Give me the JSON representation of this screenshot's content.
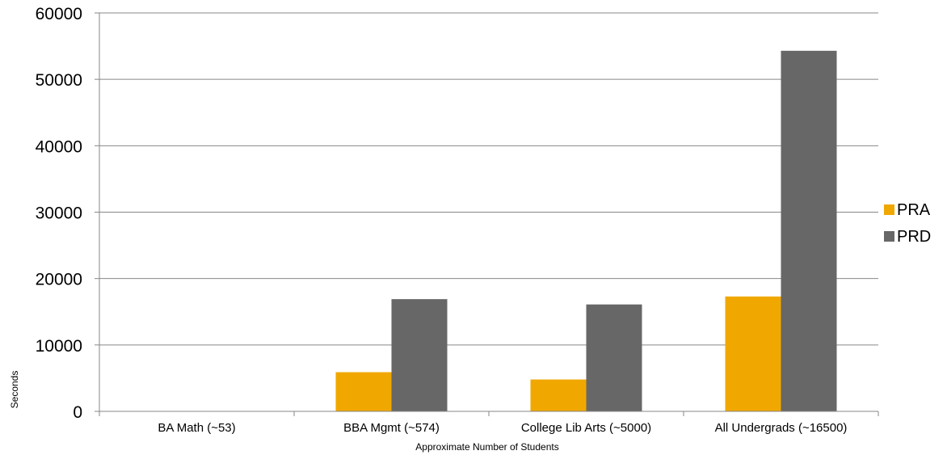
{
  "chart_data": {
    "type": "bar",
    "title": "",
    "xlabel": "Approximate Number of Students",
    "ylabel": "Seconds",
    "categories": [
      "BA Math (~53)",
      "BBA Mgmt (~574)",
      "College Lib Arts (~5000)",
      "All Undergrads (~16500)"
    ],
    "series": [
      {
        "name": "PRA",
        "color": "#f0a800",
        "values": [
          20,
          5900,
          4800,
          17300
        ]
      },
      {
        "name": "PRD",
        "color": "#676767",
        "values": [
          30,
          16900,
          16100,
          54300
        ]
      }
    ],
    "ylim": [
      0,
      60000
    ],
    "yticks": [
      "0",
      "10000",
      "20000",
      "30000",
      "40000",
      "50000",
      "60000"
    ],
    "grid": true,
    "legend_position": "right"
  }
}
